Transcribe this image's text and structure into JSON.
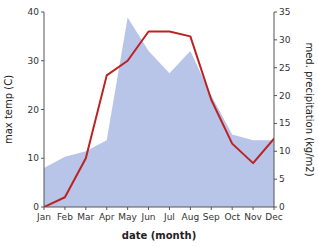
{
  "chart_data": {
    "type": "line",
    "categories": [
      "Jan",
      "Feb",
      "Mar",
      "Apr",
      "May",
      "Jun",
      "Jul",
      "Aug",
      "Sep",
      "Oct",
      "Nov",
      "Dec"
    ],
    "xlabel": "date (month)",
    "ylabel": "max temp (C)",
    "y2label": "med. precipitation (kg/m2)",
    "series": [
      {
        "type": "area",
        "axis": "y2",
        "color": "#b8c4e8",
        "values": [
          7,
          9,
          10,
          12,
          34,
          28,
          24,
          28,
          20,
          13,
          12,
          12
        ]
      },
      {
        "type": "line",
        "axis": "y",
        "color": "#bb2222",
        "values": [
          0,
          2,
          10,
          27,
          30,
          36,
          36,
          35,
          22,
          13,
          9,
          14
        ]
      }
    ],
    "ylim": [
      0,
      40
    ],
    "yticks": [
      0,
      10,
      20,
      30,
      40
    ],
    "y2lim": [
      0,
      35
    ],
    "y2ticks": [
      0,
      5,
      10,
      15,
      20,
      25,
      30,
      35
    ],
    "grid": false
  }
}
